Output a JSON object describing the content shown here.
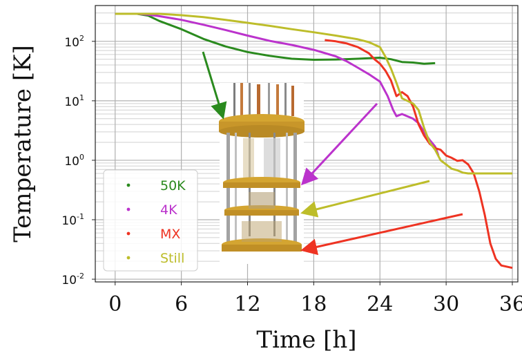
{
  "chart_data": {
    "type": "line",
    "xlabel": "Time [h]",
    "ylabel": "Temperature [K]",
    "xlim": [
      -1.8,
      36.5
    ],
    "ylim": [
      0.009,
      400
    ],
    "yscale": "log",
    "x_ticks": [
      0,
      6,
      12,
      18,
      24,
      30,
      36
    ],
    "y_ticks": [
      {
        "value": 0.01,
        "base": "10",
        "exp": "-2"
      },
      {
        "value": 0.1,
        "base": "10",
        "exp": "-1"
      },
      {
        "value": 1,
        "base": "10",
        "exp": "0"
      },
      {
        "value": 10,
        "base": "10",
        "exp": "1"
      },
      {
        "value": 100,
        "base": "10",
        "exp": "2"
      }
    ],
    "grid": true,
    "legend_position": "lower-left",
    "series": [
      {
        "name": "50K",
        "color": "#2a8a1e",
        "points": [
          [
            0,
            290
          ],
          [
            2,
            290
          ],
          [
            3,
            270
          ],
          [
            4,
            220
          ],
          [
            6,
            160
          ],
          [
            8,
            110
          ],
          [
            10,
            82
          ],
          [
            12,
            66
          ],
          [
            14,
            57
          ],
          [
            16,
            51
          ],
          [
            18,
            49
          ],
          [
            20,
            49.5
          ],
          [
            22,
            51
          ],
          [
            24,
            53
          ],
          [
            25,
            50
          ],
          [
            26,
            45
          ],
          [
            27,
            44
          ],
          [
            28,
            42
          ],
          [
            29,
            43
          ]
        ]
      },
      {
        "name": "4K",
        "color": "#bb33cc",
        "points": [
          [
            0,
            290
          ],
          [
            2,
            290
          ],
          [
            3,
            280
          ],
          [
            4,
            265
          ],
          [
            6,
            230
          ],
          [
            8,
            190
          ],
          [
            10,
            155
          ],
          [
            12,
            125
          ],
          [
            14,
            102
          ],
          [
            16,
            87
          ],
          [
            18,
            72
          ],
          [
            20,
            56
          ],
          [
            21,
            46
          ],
          [
            22,
            36
          ],
          [
            23,
            28
          ],
          [
            24,
            21
          ],
          [
            24.7,
            12
          ],
          [
            25.2,
            7
          ],
          [
            25.5,
            5.5
          ],
          [
            26,
            6
          ],
          [
            27,
            5
          ],
          [
            27.5,
            4.2
          ],
          [
            28,
            3
          ],
          [
            28.5,
            2.2
          ],
          [
            29,
            1.7
          ],
          [
            29.3,
            1.2
          ]
        ]
      },
      {
        "name": "MX",
        "color": "#ee3322",
        "points": [
          [
            19,
            105
          ],
          [
            20,
            100
          ],
          [
            21,
            92
          ],
          [
            22,
            80
          ],
          [
            23,
            63
          ],
          [
            23.5,
            50
          ],
          [
            24,
            42
          ],
          [
            24.5,
            32
          ],
          [
            25,
            22
          ],
          [
            25.5,
            12
          ],
          [
            26,
            14
          ],
          [
            26.5,
            12
          ],
          [
            27,
            8
          ],
          [
            27.5,
            4
          ],
          [
            28,
            2.6
          ],
          [
            28.5,
            1.9
          ],
          [
            29,
            1.6
          ],
          [
            29.5,
            1.5
          ],
          [
            30,
            1.2
          ],
          [
            30.5,
            1.1
          ],
          [
            31,
            0.98
          ],
          [
            31.5,
            1
          ],
          [
            32,
            0.85
          ],
          [
            32.5,
            0.6
          ],
          [
            33,
            0.3
          ],
          [
            33.5,
            0.12
          ],
          [
            34,
            0.04
          ],
          [
            34.5,
            0.022
          ],
          [
            35,
            0.017
          ],
          [
            36,
            0.0155
          ]
        ]
      },
      {
        "name": "Still",
        "color": "#bdbd2a",
        "points": [
          [
            0,
            290
          ],
          [
            2,
            290
          ],
          [
            4,
            290
          ],
          [
            6,
            275
          ],
          [
            8,
            255
          ],
          [
            10,
            230
          ],
          [
            12,
            205
          ],
          [
            14,
            182
          ],
          [
            16,
            160
          ],
          [
            18,
            142
          ],
          [
            20,
            125
          ],
          [
            22,
            108
          ],
          [
            23,
            97
          ],
          [
            24,
            80
          ],
          [
            24.5,
            55
          ],
          [
            25,
            35
          ],
          [
            25.5,
            20
          ],
          [
            26,
            11
          ],
          [
            27,
            9
          ],
          [
            27.5,
            7
          ],
          [
            28,
            3.5
          ],
          [
            28.5,
            2
          ],
          [
            29,
            1.5
          ],
          [
            29.5,
            1
          ],
          [
            30,
            0.85
          ],
          [
            30.5,
            0.72
          ],
          [
            31,
            0.68
          ],
          [
            31.5,
            0.62
          ],
          [
            32,
            0.6
          ],
          [
            33,
            0.6
          ],
          [
            34,
            0.6
          ],
          [
            36,
            0.6
          ]
        ]
      }
    ]
  }
}
